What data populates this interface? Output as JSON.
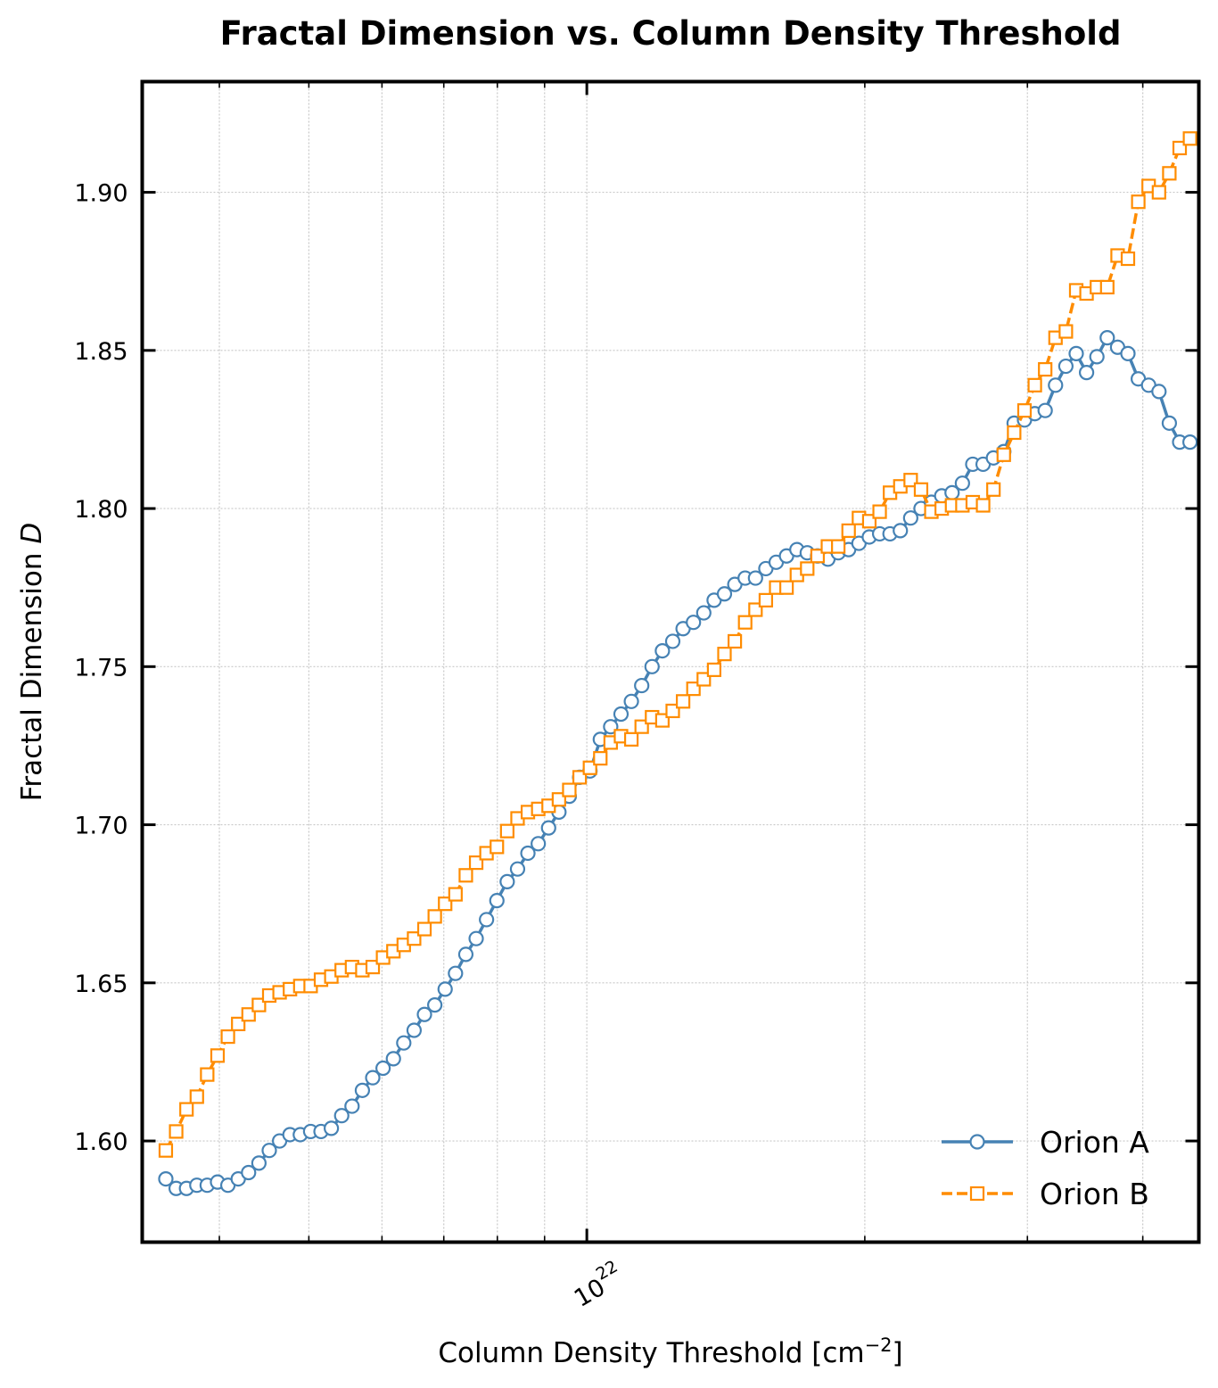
{
  "chart_data": {
    "type": "line",
    "title": "Fractal Dimension vs. Column Density Threshold",
    "xlabel": "Column Density Threshold [cm",
    "xlabel_sup": "−2",
    "xlabel_close": "]",
    "ylabel": "Fractal Dimension ",
    "ylabel_var": "D",
    "x_scale": "log",
    "xlim": [
      3.3e+21,
      4.6e+22
    ],
    "ylim": [
      1.568,
      1.935
    ],
    "x_major_tick": {
      "value": 1e+22,
      "base": "10",
      "exponent": "22"
    },
    "x_minor_ticks": [
      4e+21,
      5e+21,
      6e+21,
      7e+21,
      8e+21,
      9e+21,
      2e+22,
      3e+22,
      4e+22
    ],
    "y_ticks": [
      1.6,
      1.65,
      1.7,
      1.75,
      1.8,
      1.85,
      1.9
    ],
    "y_tick_labels": [
      "1.60",
      "1.65",
      "1.70",
      "1.75",
      "1.80",
      "1.85",
      "1.90"
    ],
    "grid": true,
    "legend_position": "lower-right",
    "x_range": [
      3.5e+21,
      4.5e+22
    ],
    "n_points": 100,
    "series": [
      {
        "name": "Orion A",
        "color": "#4682b4",
        "line_style": "solid",
        "marker": "circle",
        "values": [
          1.588,
          1.585,
          1.585,
          1.586,
          1.586,
          1.587,
          1.586,
          1.588,
          1.59,
          1.593,
          1.597,
          1.6,
          1.602,
          1.602,
          1.603,
          1.603,
          1.604,
          1.608,
          1.611,
          1.616,
          1.62,
          1.623,
          1.626,
          1.631,
          1.635,
          1.64,
          1.643,
          1.648,
          1.653,
          1.659,
          1.664,
          1.67,
          1.676,
          1.682,
          1.686,
          1.691,
          1.694,
          1.699,
          1.704,
          1.709,
          1.715,
          1.717,
          1.727,
          1.731,
          1.735,
          1.739,
          1.744,
          1.75,
          1.755,
          1.758,
          1.762,
          1.764,
          1.767,
          1.771,
          1.773,
          1.776,
          1.778,
          1.778,
          1.781,
          1.783,
          1.785,
          1.787,
          1.786,
          1.785,
          1.784,
          1.786,
          1.787,
          1.789,
          1.791,
          1.792,
          1.792,
          1.793,
          1.797,
          1.8,
          1.802,
          1.804,
          1.805,
          1.808,
          1.814,
          1.814,
          1.816,
          1.818,
          1.827,
          1.828,
          1.83,
          1.831,
          1.839,
          1.845,
          1.849,
          1.843,
          1.848,
          1.854,
          1.851,
          1.849,
          1.841,
          1.839,
          1.837,
          1.827,
          1.821,
          1.821
        ]
      },
      {
        "name": "Orion B",
        "color": "#ff8c00",
        "line_style": "dashed",
        "marker": "square",
        "values": [
          1.597,
          1.603,
          1.61,
          1.614,
          1.621,
          1.627,
          1.633,
          1.637,
          1.64,
          1.643,
          1.646,
          1.647,
          1.648,
          1.649,
          1.649,
          1.651,
          1.652,
          1.654,
          1.655,
          1.654,
          1.655,
          1.658,
          1.66,
          1.662,
          1.664,
          1.667,
          1.671,
          1.675,
          1.678,
          1.684,
          1.688,
          1.691,
          1.693,
          1.698,
          1.702,
          1.704,
          1.705,
          1.706,
          1.708,
          1.711,
          1.715,
          1.718,
          1.721,
          1.726,
          1.728,
          1.727,
          1.731,
          1.734,
          1.733,
          1.736,
          1.739,
          1.743,
          1.746,
          1.749,
          1.754,
          1.758,
          1.764,
          1.768,
          1.771,
          1.775,
          1.775,
          1.779,
          1.781,
          1.785,
          1.788,
          1.788,
          1.793,
          1.797,
          1.796,
          1.799,
          1.805,
          1.807,
          1.809,
          1.806,
          1.799,
          1.8,
          1.801,
          1.801,
          1.802,
          1.801,
          1.806,
          1.817,
          1.824,
          1.831,
          1.839,
          1.844,
          1.854,
          1.856,
          1.869,
          1.868,
          1.87,
          1.87,
          1.88,
          1.879,
          1.897,
          1.902,
          1.9,
          1.906,
          1.914,
          1.917
        ]
      }
    ]
  }
}
